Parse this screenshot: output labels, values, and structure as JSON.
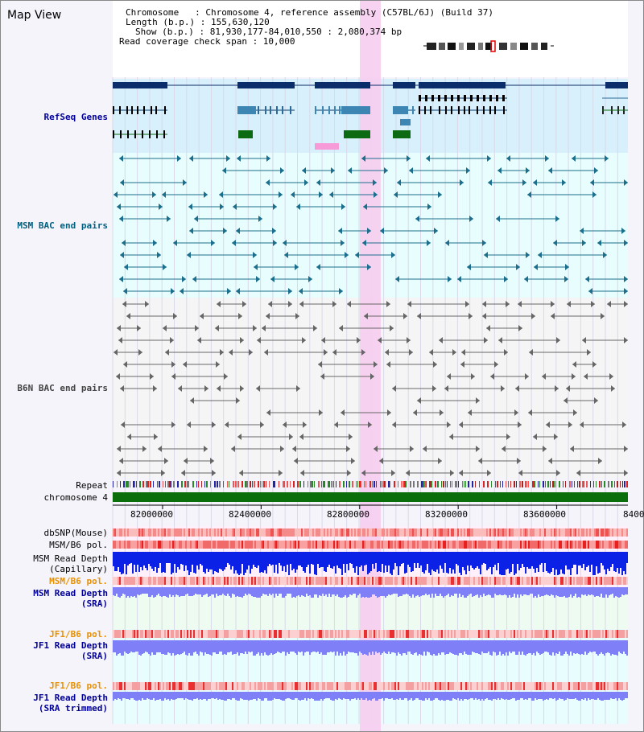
{
  "page_title": "Map View",
  "header": {
    "chromosome_line": "Chromosome   : Chromosome 4, reference assembly (C57BL/6J) (Build 37)",
    "length_line": "Length (b.p.) : 155,630,120",
    "show_line": "Show (b.p.) : 81,930,177-84,010,550 : 2,080,374 bp",
    "coverage_line": "Read coverage check span : 10,000"
  },
  "tracks": {
    "refseq": {
      "label": "RefSeq Genes",
      "color": "#000099"
    },
    "msm_bac": {
      "label": "MSM BAC end pairs",
      "color": "#006080"
    },
    "b6n_bac": {
      "label": "B6N BAC end pairs",
      "color": "#444444"
    },
    "repeat": {
      "label": "Repeat"
    },
    "chromosome": {
      "label": "chromosome 4"
    },
    "dbsnp": {
      "label": "dbSNP(Mouse)"
    },
    "msm_b6_pol_1": {
      "label": "MSM/B6 pol."
    },
    "msm_read_depth_cap": {
      "label": "MSM Read Depth\n(Capillary)"
    },
    "msm_b6_pol_2": {
      "label": "MSM/B6 pol.",
      "color": "#e89000"
    },
    "msm_read_depth_sra": {
      "label": "MSM Read Depth\n(SRA)",
      "color": "#000099"
    },
    "jf1_b6_pol_1": {
      "label": "JF1/B6 pol.",
      "color": "#e89000"
    },
    "jf1_read_depth_sra": {
      "label": "JF1 Read Depth\n(SRA)",
      "color": "#000099"
    },
    "jf1_b6_pol_2": {
      "label": "JF1/B6 pol.",
      "color": "#e89000"
    },
    "jf1_read_depth_trimmed": {
      "label": "JF1 Read Depth\n(SRA trimmed)",
      "color": "#000099"
    }
  },
  "axis": {
    "ticks": [
      "82000000",
      "82400000",
      "82800000",
      "83200000",
      "83600000",
      "8400"
    ]
  },
  "colors": {
    "gene_dark": "#0b2e6b",
    "gene_mid": "#3d86b3",
    "gene_green": "#0b6a12",
    "highlight": "#f7cdef",
    "chromosome_bar": "#0a6e0a",
    "depth_blue": "#0b22e6",
    "depth_light_blue": "#7f80f8",
    "pol_red": "#f06a6a"
  }
}
